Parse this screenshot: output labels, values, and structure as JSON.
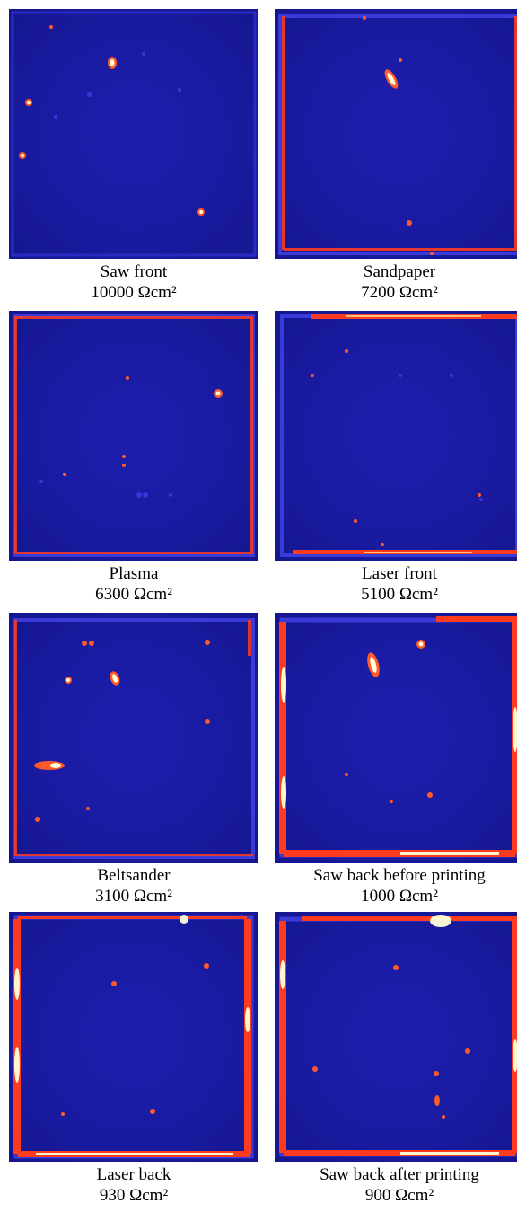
{
  "panels": [
    {
      "name": "Saw front",
      "value": "10000 Ωcm²"
    },
    {
      "name": "Sandpaper",
      "value": "7200 Ωcm²"
    },
    {
      "name": "Plasma",
      "value": "6300 Ωcm²"
    },
    {
      "name": "Laser front",
      "value": "5100 Ωcm²"
    },
    {
      "name": "Beltsander",
      "value": "3100 Ωcm²"
    },
    {
      "name": "Saw back before printing",
      "value": "1000 Ωcm²"
    },
    {
      "name": "Laser back",
      "value": "930 Ωcm²"
    },
    {
      "name": "Saw back after printing",
      "value": "900 Ωcm²"
    }
  ],
  "colors": {
    "background": "#1a1aa0",
    "edge": "#3a3ad8",
    "hot": "#ff3b1f",
    "hotter": "#ffb347",
    "hottest": "#ffffe0"
  }
}
